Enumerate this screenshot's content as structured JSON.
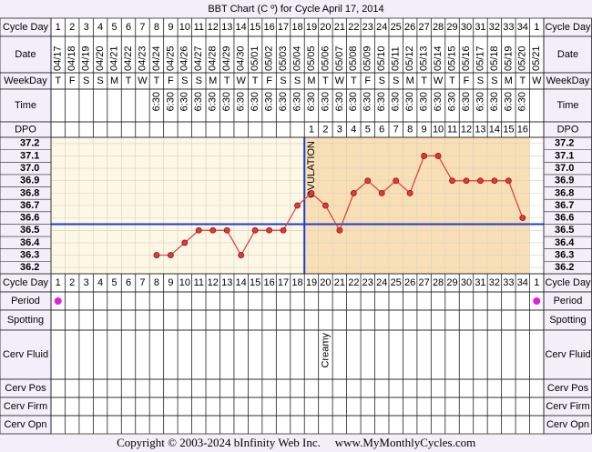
{
  "chart_data": {
    "type": "line",
    "title": "BBT Chart (C º) for Cycle April 17, 2014",
    "categories": [
      "1",
      "2",
      "3",
      "4",
      "5",
      "6",
      "7",
      "8",
      "9",
      "10",
      "11",
      "12",
      "13",
      "14",
      "15",
      "16",
      "17",
      "18",
      "19",
      "20",
      "21",
      "22",
      "23",
      "24",
      "25",
      "26",
      "27",
      "28",
      "29",
      "30",
      "31",
      "32",
      "33",
      "34",
      "1"
    ],
    "dates": [
      "04/17",
      "04/18",
      "04/19",
      "04/20",
      "04/21",
      "04/22",
      "04/23",
      "04/24",
      "04/25",
      "04/26",
      "04/27",
      "04/28",
      "04/29",
      "04/30",
      "05/01",
      "05/02",
      "05/03",
      "05/04",
      "05/05",
      "05/06",
      "05/07",
      "05/08",
      "05/09",
      "05/10",
      "05/11",
      "05/12",
      "05/13",
      "05/14",
      "05/15",
      "05/16",
      "05/17",
      "05/18",
      "05/19",
      "05/20",
      "05/21"
    ],
    "weekdays": [
      "T",
      "F",
      "S",
      "S",
      "M",
      "T",
      "W",
      "T",
      "F",
      "S",
      "S",
      "M",
      "T",
      "W",
      "T",
      "F",
      "S",
      "S",
      "M",
      "T",
      "W",
      "T",
      "F",
      "S",
      "S",
      "M",
      "T",
      "W",
      "T",
      "F",
      "S",
      "S",
      "M",
      "T",
      "W"
    ],
    "times": [
      null,
      null,
      null,
      null,
      null,
      null,
      null,
      "6:30",
      "6:30",
      "6:30",
      "6:30",
      "6:30",
      "6:30",
      "6:30",
      "6:30",
      "6:30",
      "6:30",
      "6:30",
      "6:30",
      "6:30",
      "6:30",
      "6:30",
      "6:30",
      "6:30",
      "6:30",
      "6:30",
      "6:30",
      "6:30",
      "6:30",
      "6:30",
      "6:30",
      "6:30",
      "6:30",
      "6:30",
      null
    ],
    "dpo": [
      null,
      null,
      null,
      null,
      null,
      null,
      null,
      null,
      null,
      null,
      null,
      null,
      null,
      null,
      null,
      null,
      null,
      null,
      1,
      2,
      3,
      4,
      5,
      6,
      7,
      8,
      9,
      10,
      11,
      12,
      13,
      14,
      15,
      16,
      null
    ],
    "values": [
      null,
      null,
      null,
      null,
      null,
      null,
      null,
      36.3,
      36.3,
      36.4,
      36.5,
      36.5,
      36.5,
      36.3,
      36.5,
      36.5,
      36.5,
      36.7,
      36.8,
      36.7,
      36.5,
      36.8,
      36.9,
      36.8,
      36.9,
      36.8,
      37.1,
      37.1,
      36.9,
      36.9,
      36.9,
      36.9,
      36.9,
      36.6,
      null
    ],
    "color": "#e03a3a",
    "ylim": [
      36.15,
      37.25
    ],
    "yticks": [
      36.2,
      36.3,
      36.4,
      36.5,
      36.6,
      36.7,
      36.8,
      36.9,
      {
        "value": 37,
        "label": "37.0"
      },
      37.1,
      37.2
    ],
    "coverline": 36.55,
    "ovulation_day": 18,
    "ovulation_label": "OVULATION",
    "period": [
      true,
      false,
      false,
      false,
      false,
      false,
      false,
      false,
      false,
      false,
      false,
      false,
      false,
      false,
      false,
      false,
      false,
      false,
      false,
      false,
      false,
      false,
      false,
      false,
      false,
      false,
      false,
      false,
      false,
      false,
      false,
      false,
      false,
      false,
      true
    ],
    "cerv_fluid": [
      null,
      null,
      null,
      null,
      null,
      null,
      null,
      null,
      null,
      null,
      null,
      null,
      null,
      null,
      null,
      null,
      null,
      null,
      null,
      "Creamy",
      null,
      null,
      null,
      null,
      null,
      null,
      null,
      null,
      null,
      null,
      null,
      null,
      null,
      null,
      null
    ],
    "row_labels": {
      "cycle_day": "Cycle Day",
      "date": "Date",
      "weekday": "WeekDay",
      "time": "Time",
      "dpo": "DPO",
      "period": "Period",
      "spotting": "Spotting",
      "cerv_fluid": "Cerv Fluid",
      "cerv_pos": "Cerv Pos",
      "cerv_firm": "Cerv Firm",
      "cerv_opn": "Cerv Opn"
    },
    "copyright": "Copyright © 2003-2024 bInfinity Web Inc.",
    "website": "www.MyMonthlyCycles.com"
  }
}
